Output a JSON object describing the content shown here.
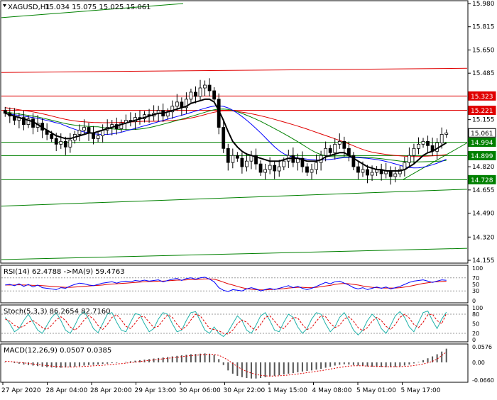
{
  "main_header": {
    "symbol": "XAGUSD,H1",
    "ohlc": "15.034 15.075 15.025 15.061"
  },
  "rsi_header": "RSI(14) 62.4788 ->MA(9) 59.4763",
  "stoch_header": "Stoch(5,3,3) 86.2654 82.7160",
  "macd_header": "MACD(12,26,9) 0.0507 0.0385",
  "colors": {
    "up_candle": "#000000",
    "down_candle": "#000000",
    "resistance": "#e00000",
    "support": "#008000",
    "ma_fast": "#000000",
    "ma_slow": "#0000ff",
    "ma_red": "#e00000",
    "ma_green": "#008000",
    "price_tag_red": "#e00000",
    "price_tag_green": "#008000"
  },
  "chart_data": [
    {
      "type": "candlestick",
      "title": "XAGUSD,H1",
      "y_ticks": [
        "15.980",
        "15.815",
        "15.650",
        "15.485",
        "15.320",
        "15.155",
        "14.990",
        "14.820",
        "14.655",
        "14.490",
        "14.320",
        "14.155"
      ],
      "ylim": [
        14.155,
        15.98
      ],
      "x_ticks": [
        "27 Apr 2020",
        "28 Apr 04:00",
        "28 Apr 20:00",
        "29 Apr 13:00",
        "30 Apr 06:00",
        "30 Apr 22:00",
        "1 May 15:00",
        "4 May 08:00",
        "5 May 01:00",
        "5 May 17:00"
      ],
      "price_labels": [
        {
          "text": "15.323",
          "value": 15.323,
          "kind": "red"
        },
        {
          "text": "15.221",
          "value": 15.221,
          "kind": "red"
        },
        {
          "text": "15.061",
          "value": 15.061,
          "kind": "current"
        },
        {
          "text": "14.994",
          "value": 14.994,
          "kind": "green"
        },
        {
          "text": "14.899",
          "value": 14.899,
          "kind": "green"
        },
        {
          "text": "14.728",
          "value": 14.728,
          "kind": "green"
        }
      ],
      "close_series": [
        15.2,
        15.18,
        15.15,
        15.17,
        15.12,
        15.16,
        15.1,
        15.13,
        15.08,
        15.05,
        15.02,
        14.98,
        15.0,
        14.96,
        15.01,
        15.05,
        15.08,
        15.1,
        15.06,
        15.02,
        15.04,
        15.08,
        15.1,
        15.12,
        15.09,
        15.13,
        15.15,
        15.14,
        15.17,
        15.16,
        15.19,
        15.18,
        15.2,
        15.22,
        15.18,
        15.21,
        15.25,
        15.28,
        15.24,
        15.3,
        15.35,
        15.32,
        15.38,
        15.4,
        15.36,
        15.3,
        15.1,
        14.95,
        14.85,
        14.9,
        14.88,
        14.82,
        14.86,
        14.9,
        14.84,
        14.78,
        14.8,
        14.83,
        14.79,
        14.82,
        14.86,
        14.9,
        14.85,
        14.88,
        14.82,
        14.78,
        14.8,
        14.85,
        14.9,
        14.95,
        14.92,
        14.98,
        15.0,
        14.95,
        14.9,
        14.82,
        14.78,
        14.8,
        14.76,
        14.78,
        14.8,
        14.77,
        14.79,
        14.75,
        14.77,
        14.8,
        14.85,
        14.9,
        14.95,
        14.98,
        15.0,
        14.97,
        14.93,
        14.99,
        15.05,
        15.06
      ],
      "ma_fast": [
        15.2,
        15.19,
        15.18,
        15.17,
        15.16,
        15.15,
        15.14,
        15.12,
        15.1,
        15.08,
        15.06,
        15.04,
        15.03,
        15.02,
        15.02,
        15.03,
        15.04,
        15.05,
        15.06,
        15.06,
        15.07,
        15.08,
        15.09,
        15.1,
        15.11,
        15.12,
        15.13,
        15.14,
        15.15,
        15.16,
        15.17,
        15.18,
        15.19,
        15.2,
        15.2,
        15.21,
        15.22,
        15.23,
        15.24,
        15.25,
        15.27,
        15.28,
        15.29,
        15.3,
        15.3,
        15.28,
        15.22,
        15.15,
        15.07,
        15.0,
        14.96,
        14.93,
        14.91,
        14.9,
        14.89,
        14.88,
        14.87,
        14.86,
        14.86,
        14.86,
        14.87,
        14.88,
        14.88,
        14.88,
        14.87,
        14.86,
        14.86,
        14.86,
        14.87,
        14.89,
        14.9,
        14.91,
        14.92,
        14.92,
        14.9,
        14.88,
        14.86,
        14.84,
        14.82,
        14.81,
        14.8,
        14.8,
        14.79,
        14.79,
        14.79,
        14.79,
        14.8,
        14.82,
        14.84,
        14.87,
        14.9,
        14.92,
        14.93,
        14.95,
        14.97,
        14.99
      ]
    },
    {
      "type": "line",
      "title": "RSI(14) 62.4788 ->MA(9) 59.4763",
      "y_ticks": [
        "100",
        "70",
        "50",
        "30",
        "0"
      ],
      "ylim": [
        0,
        100
      ],
      "rsi": [
        48,
        50,
        46,
        52,
        44,
        50,
        42,
        48,
        40,
        38,
        36,
        34,
        40,
        38,
        45,
        50,
        54,
        52,
        48,
        46,
        50,
        54,
        56,
        58,
        54,
        58,
        60,
        58,
        62,
        60,
        63,
        60,
        62,
        64,
        58,
        62,
        66,
        68,
        62,
        68,
        70,
        66,
        70,
        72,
        66,
        58,
        40,
        32,
        28,
        34,
        32,
        30,
        36,
        40,
        36,
        30,
        34,
        38,
        34,
        38,
        42,
        46,
        40,
        44,
        38,
        34,
        38,
        44,
        50,
        56,
        52,
        58,
        60,
        54,
        48,
        40,
        36,
        40,
        34,
        38,
        42,
        38,
        42,
        36,
        40,
        44,
        50,
        56,
        60,
        62,
        64,
        60,
        56,
        60,
        64,
        62.48
      ],
      "rsi_ma": [
        48,
        48,
        48,
        49,
        48,
        48,
        47,
        47,
        46,
        45,
        44,
        43,
        42,
        41,
        41,
        42,
        43,
        44,
        45,
        46,
        47,
        48,
        50,
        51,
        52,
        53,
        54,
        55,
        56,
        57,
        58,
        59,
        59,
        60,
        60,
        61,
        62,
        63,
        63,
        64,
        65,
        65,
        66,
        67,
        67,
        66,
        62,
        57,
        52,
        48,
        44,
        40,
        37,
        35,
        34,
        33,
        33,
        34,
        35,
        36,
        37,
        39,
        40,
        41,
        41,
        40,
        40,
        41,
        43,
        45,
        47,
        50,
        52,
        53,
        52,
        50,
        48,
        45,
        43,
        41,
        40,
        39,
        39,
        39,
        39,
        40,
        42,
        44,
        47,
        50,
        53,
        55,
        57,
        58,
        59,
        59.48
      ]
    },
    {
      "type": "line",
      "title": "Stoch(5,3,3) 86.2654 82.7160",
      "y_ticks": [
        "100",
        "80",
        "50",
        "20",
        "0"
      ],
      "ylim": [
        0,
        100
      ],
      "main": [
        70,
        50,
        25,
        35,
        60,
        80,
        55,
        30,
        20,
        45,
        70,
        85,
        60,
        30,
        20,
        45,
        75,
        88,
        65,
        35,
        22,
        50,
        80,
        85,
        55,
        30,
        25,
        55,
        82,
        78,
        50,
        25,
        35,
        65,
        85,
        80,
        50,
        25,
        30,
        60,
        85,
        88,
        60,
        30,
        20,
        40,
        20,
        10,
        25,
        50,
        75,
        60,
        30,
        20,
        45,
        75,
        85,
        60,
        30,
        25,
        55,
        80,
        70,
        40,
        20,
        35,
        65,
        85,
        80,
        50,
        25,
        40,
        70,
        85,
        60,
        30,
        15,
        30,
        60,
        80,
        65,
        35,
        20,
        45,
        75,
        88,
        70,
        40,
        25,
        55,
        85,
        90,
        60,
        35,
        65,
        86.27
      ],
      "signal": [
        65,
        58,
        45,
        38,
        42,
        55,
        60,
        50,
        38,
        32,
        45,
        62,
        72,
        60,
        40,
        30,
        42,
        62,
        76,
        65,
        45,
        32,
        48,
        70,
        78,
        62,
        42,
        35,
        52,
        72,
        72,
        55,
        38,
        42,
        62,
        78,
        70,
        48,
        32,
        42,
        62,
        80,
        75,
        55,
        35,
        32,
        28,
        20,
        18,
        30,
        50,
        62,
        55,
        38,
        30,
        48,
        70,
        75,
        58,
        40,
        35,
        52,
        70,
        68,
        48,
        32,
        38,
        58,
        75,
        72,
        52,
        38,
        45,
        65,
        72,
        58,
        38,
        28,
        38,
        58,
        70,
        60,
        42,
        32,
        48,
        70,
        80,
        68,
        48,
        38,
        55,
        78,
        80,
        60,
        50,
        82.72
      ]
    },
    {
      "type": "bar",
      "title": "MACD(12,26,9) 0.0507 0.0385",
      "y_ticks": [
        "0.0576",
        "0.00",
        "-0.0660"
      ],
      "ylim": [
        -0.066,
        0.0576
      ],
      "histogram": [
        0.002,
        0.0,
        -0.003,
        -0.005,
        -0.008,
        -0.01,
        -0.012,
        -0.014,
        -0.016,
        -0.018,
        -0.019,
        -0.02,
        -0.02,
        -0.019,
        -0.018,
        -0.016,
        -0.014,
        -0.012,
        -0.01,
        -0.009,
        -0.008,
        -0.006,
        -0.005,
        -0.003,
        -0.002,
        0.0,
        0.002,
        0.004,
        0.006,
        0.008,
        0.01,
        0.012,
        0.014,
        0.016,
        0.018,
        0.02,
        0.022,
        0.024,
        0.026,
        0.028,
        0.03,
        0.031,
        0.032,
        0.033,
        0.032,
        0.028,
        0.012,
        -0.01,
        -0.03,
        -0.042,
        -0.05,
        -0.055,
        -0.058,
        -0.06,
        -0.06,
        -0.058,
        -0.055,
        -0.052,
        -0.05,
        -0.048,
        -0.045,
        -0.042,
        -0.04,
        -0.037,
        -0.034,
        -0.032,
        -0.03,
        -0.027,
        -0.024,
        -0.02,
        -0.016,
        -0.012,
        -0.009,
        -0.007,
        -0.008,
        -0.01,
        -0.012,
        -0.013,
        -0.015,
        -0.016,
        -0.017,
        -0.017,
        -0.018,
        -0.018,
        -0.017,
        -0.015,
        -0.012,
        -0.008,
        -0.004,
        0.002,
        0.008,
        0.015,
        0.022,
        0.03,
        0.04,
        0.0507
      ],
      "signal": [
        0.004,
        0.003,
        0.002,
        0.0,
        -0.002,
        -0.004,
        -0.006,
        -0.008,
        -0.01,
        -0.012,
        -0.014,
        -0.015,
        -0.016,
        -0.017,
        -0.017,
        -0.017,
        -0.016,
        -0.015,
        -0.014,
        -0.013,
        -0.012,
        -0.011,
        -0.009,
        -0.008,
        -0.006,
        -0.005,
        -0.003,
        -0.001,
        0.001,
        0.003,
        0.005,
        0.007,
        0.009,
        0.011,
        0.013,
        0.015,
        0.017,
        0.019,
        0.021,
        0.023,
        0.025,
        0.026,
        0.028,
        0.029,
        0.03,
        0.029,
        0.026,
        0.018,
        0.008,
        -0.004,
        -0.016,
        -0.026,
        -0.034,
        -0.04,
        -0.045,
        -0.048,
        -0.05,
        -0.051,
        -0.051,
        -0.05,
        -0.049,
        -0.047,
        -0.045,
        -0.043,
        -0.041,
        -0.038,
        -0.036,
        -0.033,
        -0.031,
        -0.028,
        -0.025,
        -0.022,
        -0.019,
        -0.016,
        -0.014,
        -0.013,
        -0.013,
        -0.013,
        -0.014,
        -0.014,
        -0.015,
        -0.015,
        -0.016,
        -0.016,
        -0.016,
        -0.016,
        -0.015,
        -0.014,
        -0.012,
        -0.009,
        -0.006,
        -0.002,
        0.004,
        0.012,
        0.025,
        0.0385
      ]
    }
  ]
}
